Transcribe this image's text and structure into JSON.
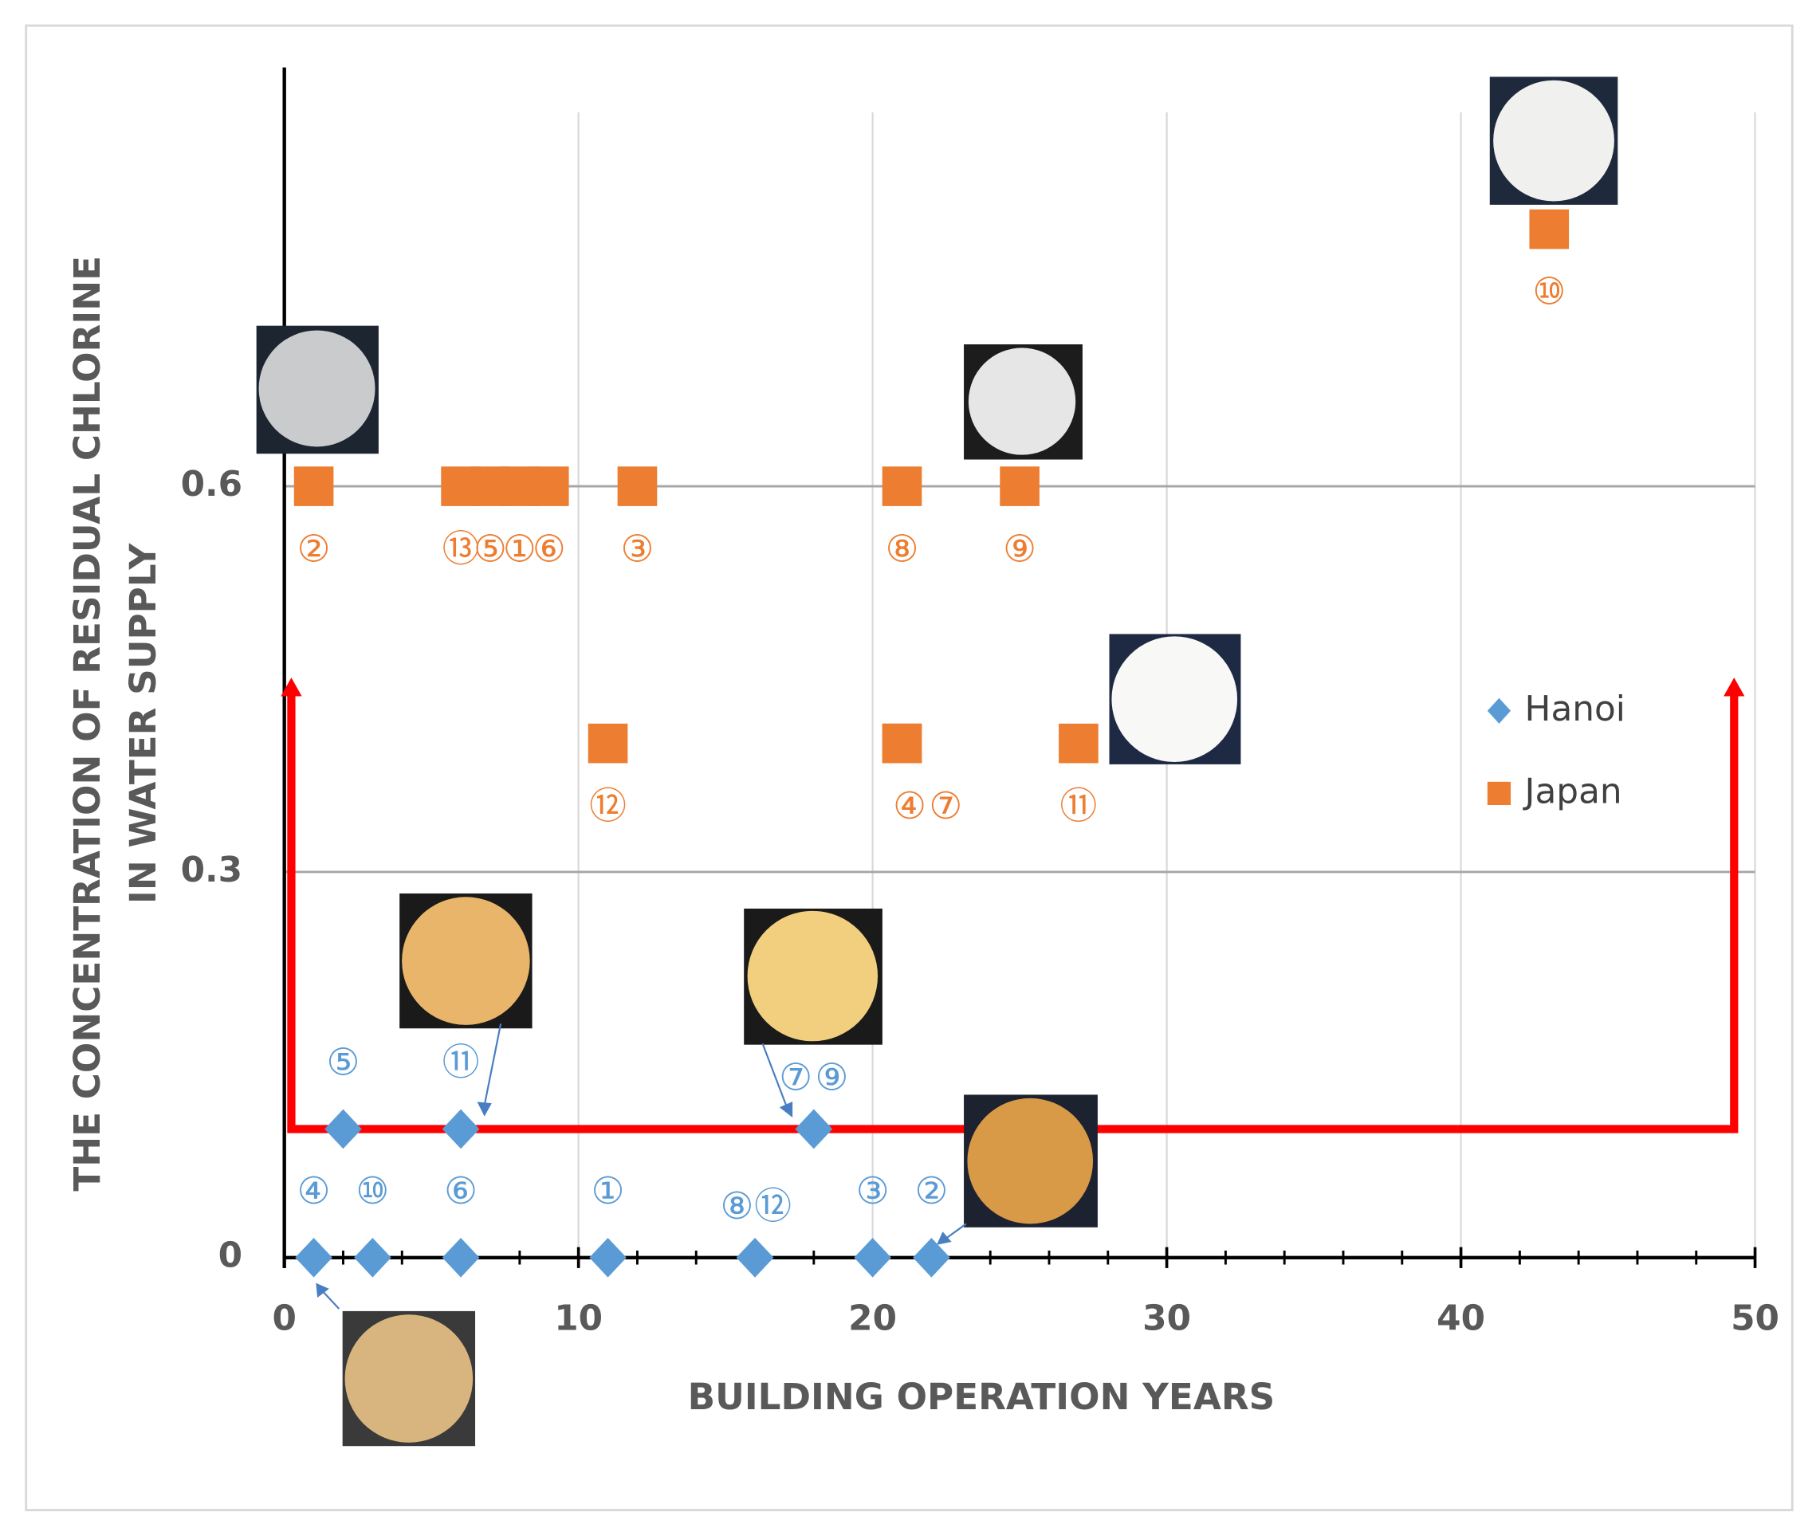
{
  "chart_data": {
    "type": "scatter",
    "xlabel": "BUILDING OPERATION YEARS",
    "ylabel": [
      "THE CONCENTRATION OF RESIDUAL CHLORINE",
      "IN WATER SUPPLY"
    ],
    "xlim": [
      0,
      50
    ],
    "xticks": [
      0,
      10,
      20,
      30,
      40,
      50
    ],
    "x_minor_ticks": [
      2,
      4,
      6,
      8,
      12,
      14,
      16,
      18,
      22,
      24,
      26,
      28,
      32,
      34,
      36,
      38,
      42,
      44,
      46,
      48
    ],
    "ylim": [
      0,
      0.9
    ],
    "yticks": [
      0,
      0.3,
      0.6
    ],
    "grid": true,
    "legend": "right",
    "reference_line": {
      "value": 0.1,
      "color": "#ff0000"
    },
    "series": [
      {
        "name": "Hanoi",
        "color": "#5b9bd5",
        "marker": "diamond",
        "x": [
          11,
          22,
          20,
          1,
          2,
          6,
          18,
          16,
          18,
          3,
          6,
          16
        ],
        "values": [
          0,
          0,
          0,
          0,
          0.1,
          0,
          0.1,
          0,
          0.1,
          0,
          0.1,
          0
        ],
        "labels": [
          "①",
          "②",
          "③",
          "④",
          "⑤",
          "⑥",
          "⑦",
          "⑧",
          "⑨",
          "⑩",
          "⑪",
          "⑫"
        ]
      },
      {
        "name": "Japan",
        "color": "#ed7d31",
        "marker": "square",
        "x": [
          8,
          1,
          12,
          21,
          7,
          9,
          21,
          21,
          25,
          43,
          27,
          11,
          6
        ],
        "values": [
          0.6,
          0.6,
          0.6,
          0.4,
          0.6,
          0.6,
          0.4,
          0.6,
          0.6,
          0.8,
          0.4,
          0.4,
          0.6
        ],
        "labels": [
          "①",
          "②",
          "③",
          "④",
          "⑤",
          "⑥",
          "⑦",
          "⑧",
          "⑨",
          "⑩",
          "⑪",
          "⑫",
          "⑬"
        ]
      }
    ]
  }
}
